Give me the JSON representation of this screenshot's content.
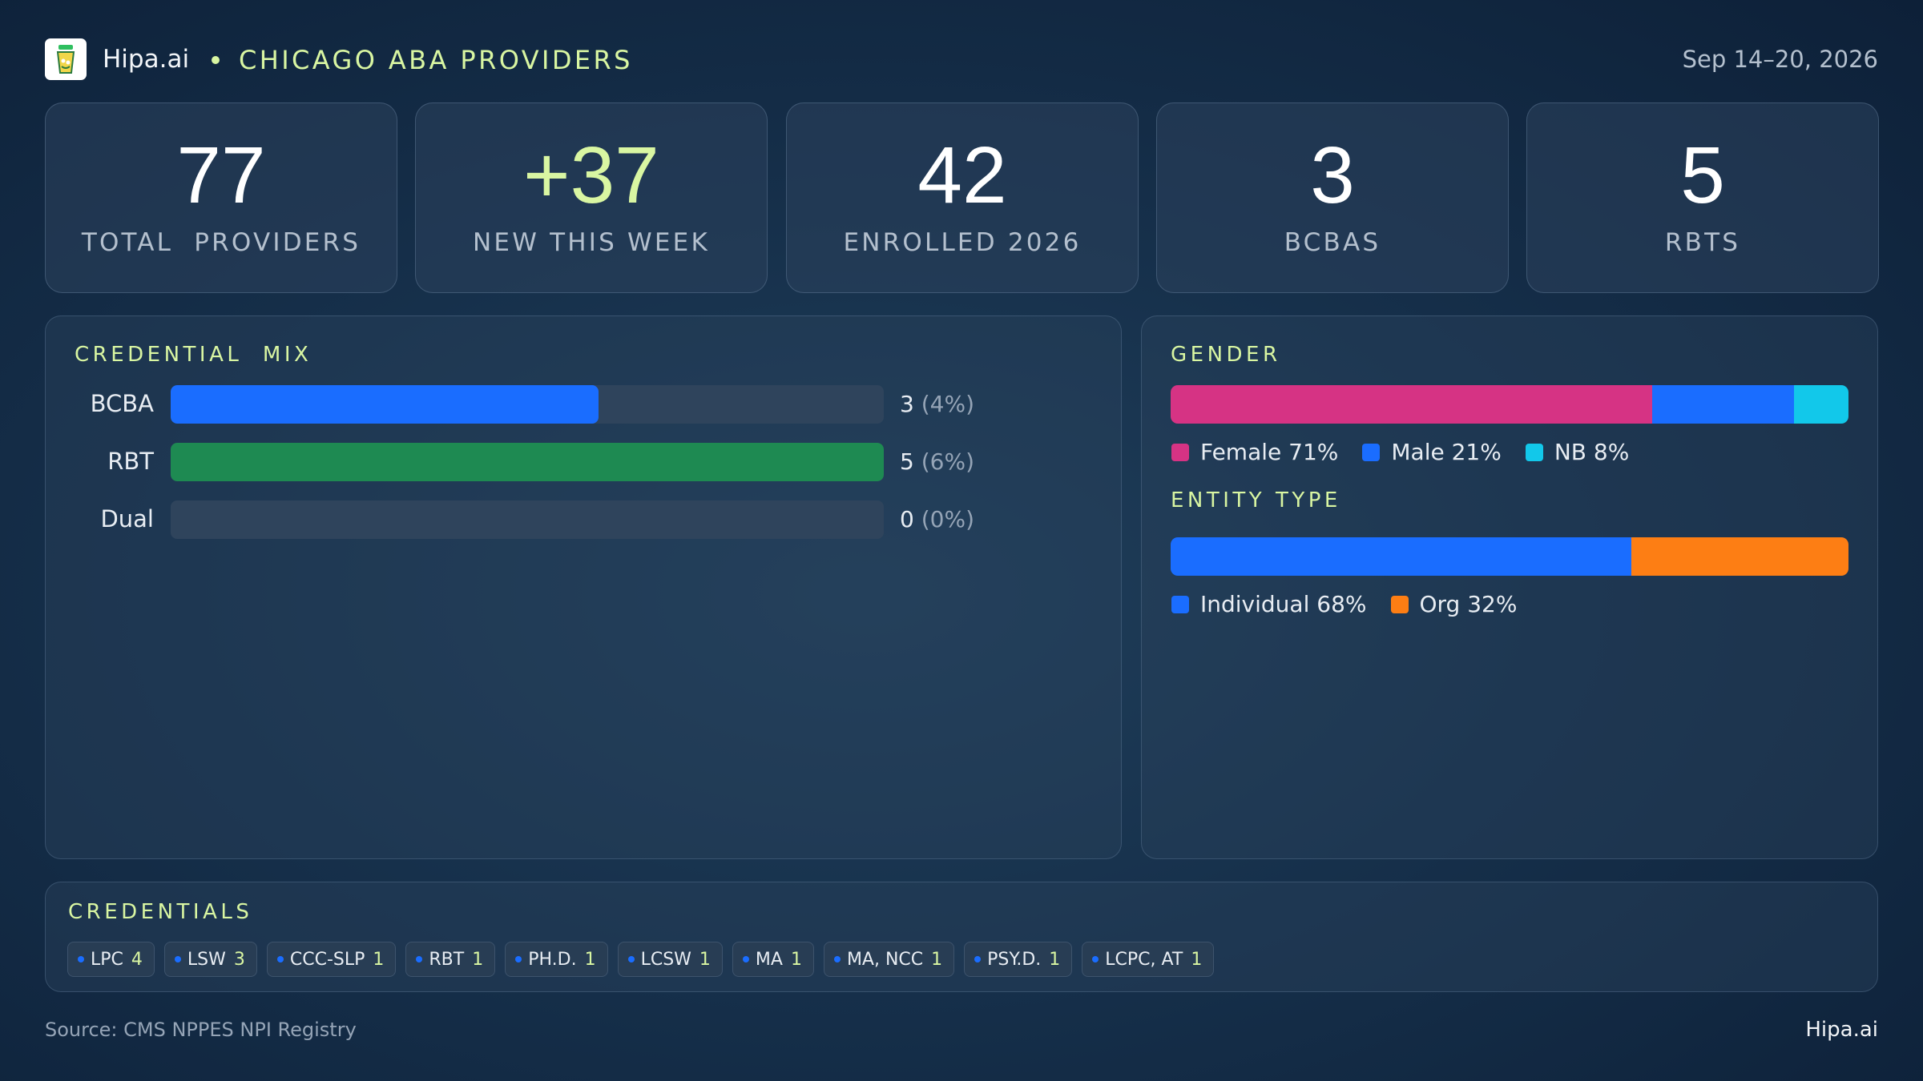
{
  "header": {
    "brand": "Hipa.ai",
    "subtitle": "CHICAGO ABA PROVIDERS",
    "date_range": "Sep 14–20, 2026"
  },
  "kpis": [
    {
      "value": "77",
      "label": "TOTAL  PROVIDERS"
    },
    {
      "value": "+37",
      "label": "NEW THIS WEEK"
    },
    {
      "value": "42",
      "label": "ENROLLED 2026"
    },
    {
      "value": "3",
      "label": "BCBAS"
    },
    {
      "value": "5",
      "label": "RBTS"
    }
  ],
  "credential_mix": {
    "title": "CREDENTIAL  MIX",
    "rows": [
      {
        "label": "BCBA",
        "count": "3",
        "pct": "(4%)",
        "fill": 0.6,
        "color": "#1a6dff"
      },
      {
        "label": "RBT",
        "count": "5",
        "pct": "(6%)",
        "fill": 1.0,
        "color": "#1e8a52"
      },
      {
        "label": "Dual",
        "count": "0",
        "pct": "(0%)",
        "fill": 0.0,
        "color": "#1a6dff"
      }
    ]
  },
  "gender": {
    "title": "GENDER",
    "segments": [
      {
        "label": "Female 71%",
        "share": 71,
        "color": "#d63384"
      },
      {
        "label": "Male 21%",
        "share": 21,
        "color": "#1a6dff"
      },
      {
        "label": "NB 8%",
        "share": 8,
        "color": "#12c8ea"
      }
    ]
  },
  "entity_type": {
    "title": "ENTITY TYPE",
    "segments": [
      {
        "label": "Individual 68%",
        "share": 68,
        "color": "#1a6dff"
      },
      {
        "label": "Org 32%",
        "share": 32,
        "color": "#fd7e14"
      }
    ]
  },
  "credentials": {
    "title": "CREDENTIALS",
    "chips": [
      {
        "label": "LPC",
        "count": "4"
      },
      {
        "label": "LSW",
        "count": "3"
      },
      {
        "label": "CCC-SLP",
        "count": "1"
      },
      {
        "label": "RBT",
        "count": "1"
      },
      {
        "label": "PH.D.",
        "count": "1"
      },
      {
        "label": "LCSW",
        "count": "1"
      },
      {
        "label": "MA",
        "count": "1"
      },
      {
        "label": "MA, NCC",
        "count": "1"
      },
      {
        "label": "PSY.D.",
        "count": "1"
      },
      {
        "label": "LCPC, AT",
        "count": "1"
      }
    ]
  },
  "footer": {
    "source": "Source: CMS NPPES NPI Registry",
    "brand": "Hipa.ai"
  },
  "colors": {
    "accent": "#d9f6a2",
    "blue": "#1a6dff",
    "green": "#1e8a52",
    "pink": "#d63384",
    "cyan": "#12c8ea",
    "orange": "#fd7e14"
  },
  "icons": {
    "logo": "drink-cup-icon"
  }
}
